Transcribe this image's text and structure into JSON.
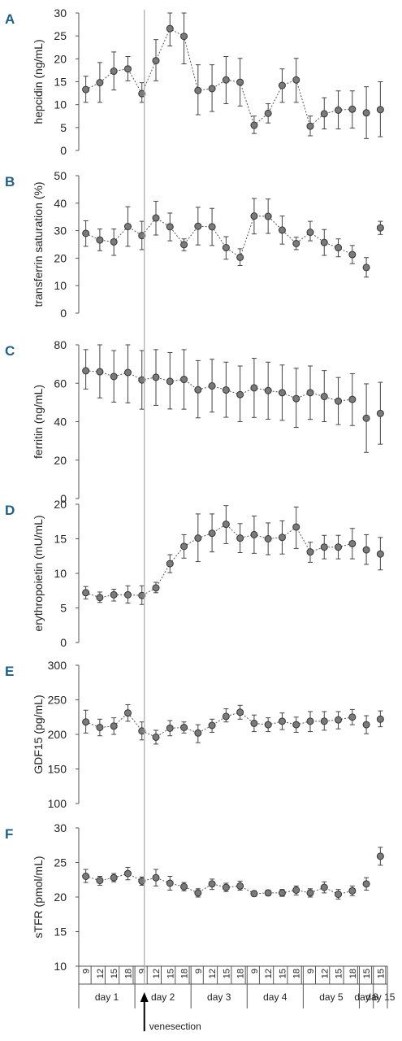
{
  "chart_data": [
    {
      "panel": "A",
      "type": "line",
      "ylabel": "hepcidin (ng/mL)",
      "ylim": [
        0,
        30
      ],
      "yticks": [
        0,
        5,
        10,
        15,
        20,
        25,
        30
      ],
      "points": [
        {
          "t": 9,
          "y": 13.3,
          "lo": 10.5,
          "hi": 16.2
        },
        {
          "t": 12,
          "y": 14.8,
          "lo": 10.5,
          "hi": 19.2
        },
        {
          "t": 15,
          "y": 17.3,
          "lo": 13.2,
          "hi": 21.5
        },
        {
          "t": 18,
          "y": 17.8,
          "lo": 15.2,
          "hi": 20.5
        },
        {
          "t": 21,
          "y": 12.4,
          "lo": 10.5,
          "hi": 14.8
        },
        {
          "t": 24,
          "y": 19.6,
          "lo": 15.2,
          "hi": 24.2
        },
        {
          "t": 27,
          "y": 26.6,
          "lo": 22.8,
          "hi": 30.0
        },
        {
          "t": 30,
          "y": 24.9,
          "lo": 18.9,
          "hi": 30.0
        },
        {
          "t": 33,
          "y": 13.1,
          "lo": 7.8,
          "hi": 18.7
        },
        {
          "t": 36,
          "y": 13.5,
          "lo": 8.5,
          "hi": 18.7
        },
        {
          "t": 39,
          "y": 15.4,
          "lo": 10.2,
          "hi": 20.5
        },
        {
          "t": 42,
          "y": 14.9,
          "lo": 9.7,
          "hi": 20.1
        },
        {
          "t": 45,
          "y": 5.5,
          "lo": 3.7,
          "hi": 7.5
        },
        {
          "t": 48,
          "y": 8.1,
          "lo": 6.0,
          "hi": 10.2
        },
        {
          "t": 51,
          "y": 14.2,
          "lo": 10.5,
          "hi": 17.8
        },
        {
          "t": 54,
          "y": 15.4,
          "lo": 10.5,
          "hi": 20.1
        },
        {
          "t": 57,
          "y": 5.3,
          "lo": 3.2,
          "hi": 7.5
        },
        {
          "t": 60,
          "y": 8.0,
          "lo": 4.7,
          "hi": 11.5
        },
        {
          "t": 63,
          "y": 8.8,
          "lo": 4.7,
          "hi": 13.0
        },
        {
          "t": 66,
          "y": 9.0,
          "lo": 4.9,
          "hi": 13.0
        },
        {
          "t": 69,
          "y": 8.2,
          "lo": 2.6,
          "hi": 13.9
        },
        {
          "t": 72,
          "y": 8.9,
          "lo": 3.0,
          "hi": 15.0
        }
      ]
    },
    {
      "panel": "B",
      "type": "line",
      "ylabel": "transferrin saturation (%)",
      "ylim": [
        0,
        50
      ],
      "yticks": [
        0,
        10,
        20,
        30,
        40,
        50
      ],
      "points": [
        {
          "t": 9,
          "y": 29.0,
          "lo": 24.3,
          "hi": 33.6
        },
        {
          "t": 12,
          "y": 26.6,
          "lo": 22.7,
          "hi": 30.6
        },
        {
          "t": 15,
          "y": 25.9,
          "lo": 21.0,
          "hi": 30.6
        },
        {
          "t": 18,
          "y": 31.5,
          "lo": 24.3,
          "hi": 38.7
        },
        {
          "t": 21,
          "y": 28.2,
          "lo": 23.1,
          "hi": 33.4
        },
        {
          "t": 24,
          "y": 34.6,
          "lo": 28.4,
          "hi": 40.7
        },
        {
          "t": 27,
          "y": 31.4,
          "lo": 26.3,
          "hi": 36.4
        },
        {
          "t": 30,
          "y": 24.9,
          "lo": 22.7,
          "hi": 27.0
        },
        {
          "t": 33,
          "y": 31.6,
          "lo": 24.8,
          "hi": 38.5
        },
        {
          "t": 36,
          "y": 31.4,
          "lo": 24.6,
          "hi": 38.1
        },
        {
          "t": 39,
          "y": 23.8,
          "lo": 19.6,
          "hi": 27.8
        },
        {
          "t": 42,
          "y": 20.3,
          "lo": 17.3,
          "hi": 23.4
        },
        {
          "t": 45,
          "y": 35.3,
          "lo": 28.8,
          "hi": 41.7
        },
        {
          "t": 48,
          "y": 35.2,
          "lo": 29.0,
          "hi": 41.5
        },
        {
          "t": 51,
          "y": 30.2,
          "lo": 25.1,
          "hi": 35.3
        },
        {
          "t": 54,
          "y": 25.3,
          "lo": 23.1,
          "hi": 27.6
        },
        {
          "t": 57,
          "y": 29.4,
          "lo": 26.3,
          "hi": 33.4
        },
        {
          "t": 60,
          "y": 25.7,
          "lo": 21.0,
          "hi": 30.4
        },
        {
          "t": 63,
          "y": 23.8,
          "lo": 20.5,
          "hi": 27.0
        },
        {
          "t": 66,
          "y": 21.3,
          "lo": 18.0,
          "hi": 24.6
        },
        {
          "t": 69,
          "y": 16.6,
          "lo": 13.1,
          "hi": 20.2
        },
        {
          "t": 72,
          "y": 31.0,
          "lo": 28.6,
          "hi": 33.4
        }
      ]
    },
    {
      "panel": "C",
      "type": "line",
      "ylabel": "ferritin (ng/mL)",
      "ylim": [
        0,
        80
      ],
      "yticks": [
        0,
        20,
        40,
        60,
        80
      ],
      "points": [
        {
          "t": 9,
          "y": 66.5,
          "lo": 57.0,
          "hi": 77.5
        },
        {
          "t": 12,
          "y": 66.0,
          "lo": 52.4,
          "hi": 80.0
        },
        {
          "t": 15,
          "y": 63.5,
          "lo": 50.2,
          "hi": 77.0
        },
        {
          "t": 18,
          "y": 65.6,
          "lo": 49.8,
          "hi": 80.0
        },
        {
          "t": 21,
          "y": 61.7,
          "lo": 46.5,
          "hi": 77.0
        },
        {
          "t": 24,
          "y": 63.1,
          "lo": 48.5,
          "hi": 77.5
        },
        {
          "t": 27,
          "y": 61.0,
          "lo": 46.6,
          "hi": 76.0
        },
        {
          "t": 30,
          "y": 62.0,
          "lo": 46.5,
          "hi": 77.5
        },
        {
          "t": 33,
          "y": 56.6,
          "lo": 42.0,
          "hi": 71.8
        },
        {
          "t": 36,
          "y": 58.6,
          "lo": 45.0,
          "hi": 72.5
        },
        {
          "t": 39,
          "y": 56.5,
          "lo": 42.3,
          "hi": 71.0
        },
        {
          "t": 42,
          "y": 54.1,
          "lo": 40.0,
          "hi": 69.0
        },
        {
          "t": 45,
          "y": 57.6,
          "lo": 42.2,
          "hi": 73.0
        },
        {
          "t": 48,
          "y": 56.2,
          "lo": 41.3,
          "hi": 71.0
        },
        {
          "t": 51,
          "y": 55.1,
          "lo": 40.7,
          "hi": 69.5
        },
        {
          "t": 54,
          "y": 52.0,
          "lo": 37.0,
          "hi": 67.8
        },
        {
          "t": 57,
          "y": 55.1,
          "lo": 41.2,
          "hi": 69.0
        },
        {
          "t": 60,
          "y": 53.1,
          "lo": 40.0,
          "hi": 66.6
        },
        {
          "t": 63,
          "y": 50.7,
          "lo": 38.5,
          "hi": 63.0
        },
        {
          "t": 66,
          "y": 51.6,
          "lo": 38.0,
          "hi": 65.0
        },
        {
          "t": 69,
          "y": 41.8,
          "lo": 24.0,
          "hi": 59.7
        },
        {
          "t": 72,
          "y": 44.3,
          "lo": 28.3,
          "hi": 60.5
        }
      ]
    },
    {
      "panel": "D",
      "type": "line",
      "ylabel": "erythropoietin (mU/mL)",
      "ylim": [
        0,
        20
      ],
      "yticks": [
        0,
        5,
        10,
        15,
        20
      ],
      "points": [
        {
          "t": 9,
          "y": 7.2,
          "lo": 6.3,
          "hi": 8.1
        },
        {
          "t": 12,
          "y": 6.5,
          "lo": 5.8,
          "hi": 7.3
        },
        {
          "t": 15,
          "y": 6.9,
          "lo": 6.0,
          "hi": 7.7
        },
        {
          "t": 18,
          "y": 6.9,
          "lo": 5.7,
          "hi": 8.2
        },
        {
          "t": 21,
          "y": 6.8,
          "lo": 5.5,
          "hi": 8.2
        },
        {
          "t": 24,
          "y": 7.9,
          "lo": 7.2,
          "hi": 8.7
        },
        {
          "t": 27,
          "y": 11.4,
          "lo": 10.1,
          "hi": 12.7
        },
        {
          "t": 30,
          "y": 13.9,
          "lo": 12.2,
          "hi": 15.6
        },
        {
          "t": 33,
          "y": 15.1,
          "lo": 11.7,
          "hi": 18.6
        },
        {
          "t": 36,
          "y": 15.8,
          "lo": 13.1,
          "hi": 18.6
        },
        {
          "t": 39,
          "y": 17.1,
          "lo": 14.3,
          "hi": 19.8
        },
        {
          "t": 42,
          "y": 15.1,
          "lo": 13.0,
          "hi": 17.2
        },
        {
          "t": 45,
          "y": 15.6,
          "lo": 12.9,
          "hi": 18.3
        },
        {
          "t": 48,
          "y": 15.0,
          "lo": 12.7,
          "hi": 17.3
        },
        {
          "t": 51,
          "y": 15.2,
          "lo": 12.8,
          "hi": 17.6
        },
        {
          "t": 54,
          "y": 16.7,
          "lo": 13.6,
          "hi": 19.6
        },
        {
          "t": 57,
          "y": 13.1,
          "lo": 11.6,
          "hi": 14.5
        },
        {
          "t": 60,
          "y": 13.8,
          "lo": 12.1,
          "hi": 15.5
        },
        {
          "t": 63,
          "y": 13.8,
          "lo": 12.1,
          "hi": 15.5
        },
        {
          "t": 66,
          "y": 14.3,
          "lo": 12.1,
          "hi": 16.5
        },
        {
          "t": 69,
          "y": 13.4,
          "lo": 11.3,
          "hi": 15.6
        },
        {
          "t": 72,
          "y": 12.8,
          "lo": 10.5,
          "hi": 15.2
        }
      ]
    },
    {
      "panel": "E",
      "type": "line",
      "ylabel": "GDF15 (pg/mL)",
      "ylim": [
        100,
        300
      ],
      "yticks": [
        100,
        150,
        200,
        250,
        300
      ],
      "points": [
        {
          "t": 9,
          "y": 218,
          "lo": 202,
          "hi": 235
        },
        {
          "t": 12,
          "y": 210,
          "lo": 198,
          "hi": 222
        },
        {
          "t": 15,
          "y": 212,
          "lo": 200,
          "hi": 224
        },
        {
          "t": 18,
          "y": 231,
          "lo": 219,
          "hi": 243
        },
        {
          "t": 21,
          "y": 205,
          "lo": 192,
          "hi": 218
        },
        {
          "t": 24,
          "y": 196,
          "lo": 186,
          "hi": 206
        },
        {
          "t": 27,
          "y": 209,
          "lo": 198,
          "hi": 220
        },
        {
          "t": 30,
          "y": 210,
          "lo": 202,
          "hi": 218
        },
        {
          "t": 33,
          "y": 202,
          "lo": 188,
          "hi": 214
        },
        {
          "t": 36,
          "y": 213,
          "lo": 203,
          "hi": 222
        },
        {
          "t": 39,
          "y": 226,
          "lo": 218,
          "hi": 237
        },
        {
          "t": 42,
          "y": 232,
          "lo": 222,
          "hi": 242
        },
        {
          "t": 45,
          "y": 216,
          "lo": 204,
          "hi": 228
        },
        {
          "t": 48,
          "y": 214,
          "lo": 204,
          "hi": 224
        },
        {
          "t": 51,
          "y": 219,
          "lo": 207,
          "hi": 231
        },
        {
          "t": 54,
          "y": 214,
          "lo": 203,
          "hi": 225
        },
        {
          "t": 57,
          "y": 219,
          "lo": 204,
          "hi": 233
        },
        {
          "t": 60,
          "y": 219,
          "lo": 206,
          "hi": 233
        },
        {
          "t": 63,
          "y": 221,
          "lo": 208,
          "hi": 233
        },
        {
          "t": 66,
          "y": 225,
          "lo": 214,
          "hi": 236
        },
        {
          "t": 69,
          "y": 214,
          "lo": 201,
          "hi": 227
        },
        {
          "t": 72,
          "y": 222,
          "lo": 211,
          "hi": 234
        }
      ]
    },
    {
      "panel": "F",
      "type": "line",
      "ylabel": "sTFR (pmol/mL)",
      "ylim": [
        10,
        30
      ],
      "yticks": [
        10,
        15,
        20,
        25,
        30
      ],
      "points": [
        {
          "t": 9,
          "y": 23.0,
          "lo": 22.1,
          "hi": 24.0
        },
        {
          "t": 12,
          "y": 22.4,
          "lo": 21.7,
          "hi": 23.0
        },
        {
          "t": 15,
          "y": 22.8,
          "lo": 22.2,
          "hi": 23.4
        },
        {
          "t": 18,
          "y": 23.4,
          "lo": 22.5,
          "hi": 24.3
        },
        {
          "t": 21,
          "y": 22.3,
          "lo": 21.7,
          "hi": 22.9
        },
        {
          "t": 24,
          "y": 22.8,
          "lo": 21.6,
          "hi": 24.0
        },
        {
          "t": 27,
          "y": 22.0,
          "lo": 21.0,
          "hi": 23.0
        },
        {
          "t": 30,
          "y": 21.5,
          "lo": 20.9,
          "hi": 22.1
        },
        {
          "t": 33,
          "y": 20.6,
          "lo": 20.0,
          "hi": 21.2
        },
        {
          "t": 36,
          "y": 21.9,
          "lo": 21.1,
          "hi": 22.6
        },
        {
          "t": 39,
          "y": 21.4,
          "lo": 20.8,
          "hi": 22.0
        },
        {
          "t": 42,
          "y": 21.6,
          "lo": 21.0,
          "hi": 22.3
        },
        {
          "t": 45,
          "y": 20.5,
          "lo": 20.1,
          "hi": 20.9
        },
        {
          "t": 48,
          "y": 20.6,
          "lo": 20.2,
          "hi": 21.0
        },
        {
          "t": 51,
          "y": 20.6,
          "lo": 20.1,
          "hi": 21.1
        },
        {
          "t": 54,
          "y": 21.0,
          "lo": 20.3,
          "hi": 21.6
        },
        {
          "t": 57,
          "y": 20.6,
          "lo": 20.0,
          "hi": 21.2
        },
        {
          "t": 60,
          "y": 21.4,
          "lo": 20.6,
          "hi": 22.2
        },
        {
          "t": 63,
          "y": 20.4,
          "lo": 19.7,
          "hi": 21.1
        },
        {
          "t": 66,
          "y": 20.9,
          "lo": 20.2,
          "hi": 21.6
        },
        {
          "t": 69,
          "y": 21.9,
          "lo": 21.0,
          "hi": 22.8
        },
        {
          "t": 72,
          "y": 25.9,
          "lo": 24.6,
          "hi": 27.2
        }
      ]
    }
  ],
  "x_axis": {
    "hour_ticks": [
      {
        "t": 9,
        "label": "9"
      },
      {
        "t": 12,
        "label": "12"
      },
      {
        "t": 15,
        "label": "15"
      },
      {
        "t": 18,
        "label": "18"
      },
      {
        "t": 21,
        "label": "9"
      },
      {
        "t": 24,
        "label": "12"
      },
      {
        "t": 27,
        "label": "15"
      },
      {
        "t": 30,
        "label": "18"
      },
      {
        "t": 33,
        "label": "9"
      },
      {
        "t": 36,
        "label": "12"
      },
      {
        "t": 39,
        "label": "15"
      },
      {
        "t": 42,
        "label": "18"
      },
      {
        "t": 45,
        "label": "9"
      },
      {
        "t": 48,
        "label": "12"
      },
      {
        "t": 51,
        "label": "15"
      },
      {
        "t": 54,
        "label": "18"
      },
      {
        "t": 57,
        "label": "9"
      },
      {
        "t": 60,
        "label": "12"
      },
      {
        "t": 63,
        "label": "15"
      },
      {
        "t": 66,
        "label": "18"
      },
      {
        "t": 69,
        "label": "15"
      },
      {
        "t": 72,
        "label": "15"
      }
    ],
    "days": [
      {
        "label": "day 1",
        "from": 7.5,
        "to": 19.5
      },
      {
        "label": "day 2",
        "from": 19.5,
        "to": 31.5
      },
      {
        "label": "day 3",
        "from": 31.5,
        "to": 43.5
      },
      {
        "label": "day 4",
        "from": 43.5,
        "to": 55.5
      },
      {
        "label": "day 5",
        "from": 55.5,
        "to": 67.5
      },
      {
        "label": "day 8",
        "from": 67.5,
        "to": 70.5
      },
      {
        "label": "day 15",
        "from": 70.5,
        "to": 73.5
      }
    ]
  },
  "venesection": {
    "t": 21,
    "label": "venesection"
  },
  "colors": {
    "panel_letter": "#1f5f86",
    "marker_fill": "#7a7a7a",
    "marker_stroke": "#333333",
    "line": "#555555",
    "axis": "#555555",
    "venesection_line": "#aaaaaa"
  }
}
